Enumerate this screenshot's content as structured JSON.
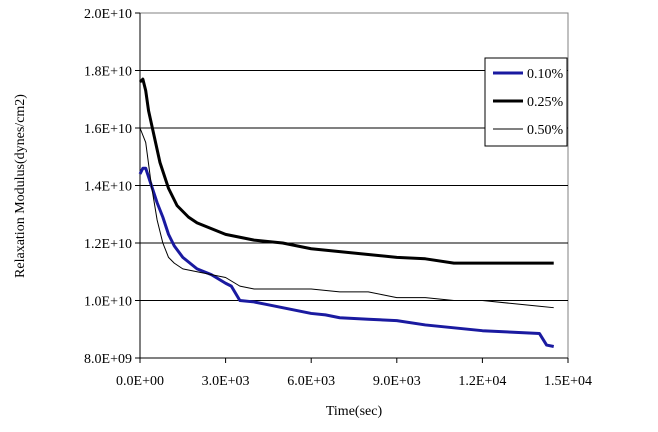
{
  "chart_data": {
    "type": "line",
    "title": "",
    "xlabel": "Time(sec)",
    "ylabel": "Relaxation Modulus(dynes/cm2)",
    "xlim": [
      0,
      15000
    ],
    "ylim": [
      8000000000,
      20000000000
    ],
    "x_ticks": [
      0,
      3000,
      6000,
      9000,
      12000,
      15000
    ],
    "x_tick_labels": [
      "0.0E+00",
      "3.0E+03",
      "6.0E+03",
      "9.0E+03",
      "1.2E+04",
      "1.5E+04"
    ],
    "y_ticks": [
      8000000000,
      10000000000,
      12000000000,
      14000000000,
      16000000000,
      18000000000,
      20000000000
    ],
    "y_tick_labels": [
      "8.0E+09",
      "1.0E+10",
      "1.2E+10",
      "1.4E+10",
      "1.6E+10",
      "1.8E+10",
      "2.0E+10"
    ],
    "grid": "horizontal",
    "legend_position": "top-right",
    "series": [
      {
        "name": "0.10%",
        "color": "#1a1aa0",
        "line_weight": "heavy",
        "x": [
          0,
          100,
          200,
          300,
          400,
          500,
          600,
          800,
          1000,
          1200,
          1500,
          2000,
          2500,
          3000,
          3200,
          3500,
          4000,
          4500,
          5000,
          5500,
          6000,
          6500,
          7000,
          8000,
          9000,
          10000,
          11000,
          12000,
          13000,
          14000,
          14250,
          14500
        ],
        "values": [
          14400000000,
          14600000000,
          14600000000,
          14300000000,
          14000000000,
          13700000000,
          13400000000,
          12900000000,
          12300000000,
          11900000000,
          11500000000,
          11100000000,
          10900000000,
          10600000000,
          10500000000,
          10000000000,
          9950000000,
          9850000000,
          9750000000,
          9650000000,
          9550000000,
          9500000000,
          9400000000,
          9350000000,
          9300000000,
          9150000000,
          9050000000,
          8950000000,
          8900000000,
          8850000000,
          8450000000,
          8400000000
        ]
      },
      {
        "name": "0.25%",
        "color": "#000000",
        "line_weight": "heavy",
        "x": [
          0,
          100,
          200,
          300,
          500,
          700,
          1000,
          1300,
          1700,
          2000,
          2500,
          3000,
          3500,
          4000,
          5000,
          6000,
          7000,
          8000,
          9000,
          10000,
          11000,
          12000,
          13000,
          14000,
          14500
        ],
        "values": [
          17600000000,
          17700000000,
          17300000000,
          16600000000,
          15700000000,
          14800000000,
          13900000000,
          13300000000,
          12900000000,
          12700000000,
          12500000000,
          12300000000,
          12200000000,
          12100000000,
          12000000000,
          11800000000,
          11700000000,
          11600000000,
          11500000000,
          11450000000,
          11300000000,
          11300000000,
          11300000000,
          11300000000,
          11300000000
        ]
      },
      {
        "name": "0.50%",
        "color": "#000000",
        "line_weight": "thin",
        "x": [
          0,
          200,
          400,
          600,
          800,
          1000,
          1200,
          1500,
          2000,
          2500,
          3000,
          3500,
          4000,
          5000,
          6000,
          7000,
          8000,
          8500,
          9000,
          10000,
          11000,
          12000,
          13000,
          14000,
          14500
        ],
        "values": [
          16000000000,
          15500000000,
          14000000000,
          12800000000,
          12000000000,
          11500000000,
          11300000000,
          11100000000,
          11000000000,
          10900000000,
          10800000000,
          10500000000,
          10400000000,
          10400000000,
          10400000000,
          10300000000,
          10300000000,
          10200000000,
          10100000000,
          10100000000,
          10000000000,
          10000000000,
          9900000000,
          9800000000,
          9750000000
        ]
      }
    ]
  }
}
